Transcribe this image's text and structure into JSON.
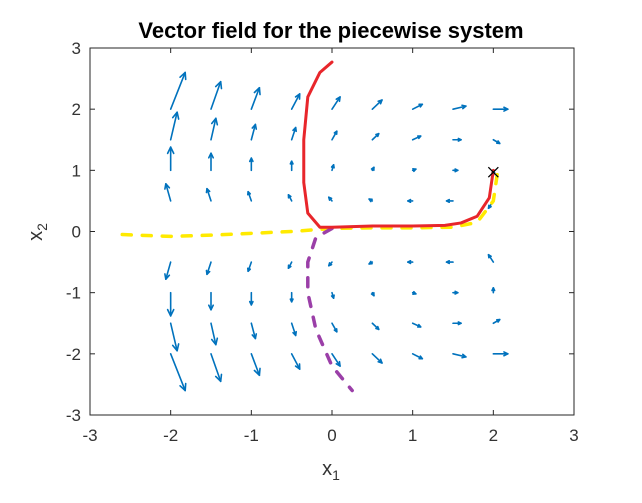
{
  "chart_data": {
    "type": "quiver",
    "title": "Vector field for the piecewise system",
    "xlabel": {
      "base": "x",
      "sub": "1"
    },
    "ylabel": {
      "base": "x",
      "sub": "2"
    },
    "xlim": [
      -3,
      3
    ],
    "ylim": [
      -3,
      3
    ],
    "xticks": [
      "-3",
      "-2",
      "-1",
      "0",
      "1",
      "2",
      "3"
    ],
    "yticks": [
      "-3",
      "-2",
      "-1",
      "0",
      "1",
      "2",
      "3"
    ],
    "grid": false,
    "quiver_color": "#0072BD",
    "quiver_grid": {
      "x": [
        -2.0,
        -1.5,
        -1.0,
        -0.5,
        0.0,
        0.5,
        1.0,
        1.5,
        2.0
      ],
      "y": [
        -2.0,
        -1.5,
        -1.0,
        -0.5,
        0.0,
        0.5,
        1.0,
        1.5,
        2.0
      ]
    },
    "quiver_vectors": [
      {
        "x": -2.0,
        "y": 2.0,
        "u": 0.18,
        "v": 0.6
      },
      {
        "x": -1.5,
        "y": 2.0,
        "u": 0.12,
        "v": 0.45
      },
      {
        "x": -1.0,
        "y": 2.0,
        "u": 0.1,
        "v": 0.35
      },
      {
        "x": -0.5,
        "y": 2.0,
        "u": 0.1,
        "v": 0.25
      },
      {
        "x": 0.0,
        "y": 2.0,
        "u": 0.1,
        "v": 0.2
      },
      {
        "x": 0.5,
        "y": 2.0,
        "u": 0.12,
        "v": 0.15
      },
      {
        "x": 1.0,
        "y": 2.0,
        "u": 0.12,
        "v": 0.08
      },
      {
        "x": 1.5,
        "y": 2.0,
        "u": 0.16,
        "v": 0.05
      },
      {
        "x": 2.0,
        "y": 2.0,
        "u": 0.18,
        "v": 0.0
      },
      {
        "x": -2.0,
        "y": 1.5,
        "u": 0.08,
        "v": 0.45
      },
      {
        "x": -1.5,
        "y": 1.5,
        "u": 0.06,
        "v": 0.35
      },
      {
        "x": -1.0,
        "y": 1.5,
        "u": 0.05,
        "v": 0.25
      },
      {
        "x": -0.5,
        "y": 1.5,
        "u": 0.05,
        "v": 0.2
      },
      {
        "x": 0.0,
        "y": 1.5,
        "u": 0.06,
        "v": 0.14
      },
      {
        "x": 0.5,
        "y": 1.5,
        "u": 0.08,
        "v": 0.1
      },
      {
        "x": 1.0,
        "y": 1.5,
        "u": 0.1,
        "v": 0.06
      },
      {
        "x": 1.5,
        "y": 1.5,
        "u": 0.1,
        "v": 0.0
      },
      {
        "x": 2.0,
        "y": 1.5,
        "u": 0.08,
        "v": -0.06
      },
      {
        "x": -2.0,
        "y": 1.0,
        "u": 0.0,
        "v": 0.38
      },
      {
        "x": -1.5,
        "y": 1.0,
        "u": 0.0,
        "v": 0.28
      },
      {
        "x": -1.0,
        "y": 1.0,
        "u": 0.0,
        "v": 0.2
      },
      {
        "x": -0.5,
        "y": 1.0,
        "u": 0.0,
        "v": 0.15
      },
      {
        "x": 0.0,
        "y": 1.0,
        "u": 0.02,
        "v": 0.09
      },
      {
        "x": 0.5,
        "y": 1.0,
        "u": 0.02,
        "v": 0.05
      },
      {
        "x": 1.0,
        "y": 1.0,
        "u": 0.04,
        "v": 0.02
      },
      {
        "x": 1.5,
        "y": 1.0,
        "u": 0.06,
        "v": 0.0
      },
      {
        "x": 2.0,
        "y": 1.0,
        "u": 0.0,
        "v": -0.08
      },
      {
        "x": -2.0,
        "y": 0.5,
        "u": -0.06,
        "v": 0.28
      },
      {
        "x": -1.5,
        "y": 0.5,
        "u": -0.05,
        "v": 0.2
      },
      {
        "x": -1.0,
        "y": 0.5,
        "u": -0.04,
        "v": 0.15
      },
      {
        "x": -0.5,
        "y": 0.5,
        "u": -0.04,
        "v": 0.1
      },
      {
        "x": 0.0,
        "y": 0.5,
        "u": -0.04,
        "v": 0.06
      },
      {
        "x": 0.5,
        "y": 0.5,
        "u": -0.04,
        "v": 0.03
      },
      {
        "x": 1.0,
        "y": 0.5,
        "u": -0.06,
        "v": 0.0
      },
      {
        "x": 1.5,
        "y": 0.5,
        "u": -0.08,
        "v": 0.0
      },
      {
        "x": 2.0,
        "y": 0.5,
        "u": -0.06,
        "v": -0.12
      },
      {
        "x": -2.0,
        "y": -0.5,
        "u": -0.06,
        "v": -0.28
      },
      {
        "x": -1.5,
        "y": -0.5,
        "u": -0.05,
        "v": -0.2
      },
      {
        "x": -1.0,
        "y": -0.5,
        "u": -0.04,
        "v": -0.15
      },
      {
        "x": -0.5,
        "y": -0.5,
        "u": -0.04,
        "v": -0.1
      },
      {
        "x": 0.0,
        "y": -0.5,
        "u": -0.04,
        "v": -0.06
      },
      {
        "x": 0.5,
        "y": -0.5,
        "u": -0.04,
        "v": -0.03
      },
      {
        "x": 1.0,
        "y": -0.5,
        "u": -0.06,
        "v": 0.0
      },
      {
        "x": 1.5,
        "y": -0.5,
        "u": -0.08,
        "v": 0.0
      },
      {
        "x": 2.0,
        "y": -0.5,
        "u": -0.06,
        "v": 0.12
      },
      {
        "x": -2.0,
        "y": -1.0,
        "u": 0.0,
        "v": -0.38
      },
      {
        "x": -1.5,
        "y": -1.0,
        "u": 0.0,
        "v": -0.28
      },
      {
        "x": -1.0,
        "y": -1.0,
        "u": 0.0,
        "v": -0.2
      },
      {
        "x": -0.5,
        "y": -1.0,
        "u": 0.0,
        "v": -0.15
      },
      {
        "x": 0.0,
        "y": -1.0,
        "u": 0.02,
        "v": -0.09
      },
      {
        "x": 0.5,
        "y": -1.0,
        "u": 0.02,
        "v": -0.05
      },
      {
        "x": 1.0,
        "y": -1.0,
        "u": 0.04,
        "v": -0.02
      },
      {
        "x": 1.5,
        "y": -1.0,
        "u": 0.06,
        "v": 0.0
      },
      {
        "x": 2.0,
        "y": -1.0,
        "u": 0.0,
        "v": 0.08
      },
      {
        "x": -2.0,
        "y": -1.5,
        "u": 0.08,
        "v": -0.45
      },
      {
        "x": -1.5,
        "y": -1.5,
        "u": 0.06,
        "v": -0.35
      },
      {
        "x": -1.0,
        "y": -1.5,
        "u": 0.05,
        "v": -0.25
      },
      {
        "x": -0.5,
        "y": -1.5,
        "u": 0.05,
        "v": -0.2
      },
      {
        "x": 0.0,
        "y": -1.5,
        "u": 0.06,
        "v": -0.14
      },
      {
        "x": 0.5,
        "y": -1.5,
        "u": 0.08,
        "v": -0.1
      },
      {
        "x": 1.0,
        "y": -1.5,
        "u": 0.1,
        "v": -0.06
      },
      {
        "x": 1.5,
        "y": -1.5,
        "u": 0.1,
        "v": 0.0
      },
      {
        "x": 2.0,
        "y": -1.5,
        "u": 0.08,
        "v": 0.06
      },
      {
        "x": -2.0,
        "y": -2.0,
        "u": 0.18,
        "v": -0.6
      },
      {
        "x": -1.5,
        "y": -2.0,
        "u": 0.12,
        "v": -0.45
      },
      {
        "x": -1.0,
        "y": -2.0,
        "u": 0.1,
        "v": -0.35
      },
      {
        "x": -0.5,
        "y": -2.0,
        "u": 0.1,
        "v": -0.25
      },
      {
        "x": 0.0,
        "y": -2.0,
        "u": 0.1,
        "v": -0.2
      },
      {
        "x": 0.5,
        "y": -2.0,
        "u": 0.12,
        "v": -0.15
      },
      {
        "x": 1.0,
        "y": -2.0,
        "u": 0.12,
        "v": -0.08
      },
      {
        "x": 1.5,
        "y": -2.0,
        "u": 0.16,
        "v": -0.05
      },
      {
        "x": 2.0,
        "y": -2.0,
        "u": 0.18,
        "v": 0.0
      }
    ],
    "series": [
      {
        "color": "#FFEA00",
        "style": "dashed",
        "points": [
          [
            -2.6,
            -0.05
          ],
          [
            -2.0,
            -0.08
          ],
          [
            -1.5,
            -0.06
          ],
          [
            -1.0,
            -0.03
          ],
          [
            -0.5,
            0.0
          ],
          [
            0.0,
            0.05
          ],
          [
            0.5,
            0.06
          ],
          [
            1.0,
            0.06
          ],
          [
            1.5,
            0.07
          ],
          [
            1.8,
            0.15
          ],
          [
            2.0,
            0.5
          ],
          [
            2.05,
            0.95
          ]
        ]
      },
      {
        "color": "#9B3FA8",
        "style": "dashed",
        "points": [
          [
            0.0,
            0.05
          ],
          [
            -0.2,
            -0.1
          ],
          [
            -0.3,
            -0.5
          ],
          [
            -0.3,
            -1.0
          ],
          [
            -0.2,
            -1.6
          ],
          [
            0.0,
            -2.2
          ],
          [
            0.25,
            -2.6
          ]
        ]
      },
      {
        "color": "#E8262B",
        "style": "solid",
        "points": [
          [
            0.0,
            2.77
          ],
          [
            -0.15,
            2.6
          ],
          [
            -0.3,
            2.2
          ],
          [
            -0.35,
            1.5
          ],
          [
            -0.35,
            0.8
          ],
          [
            -0.3,
            0.3
          ],
          [
            -0.15,
            0.07
          ],
          [
            0.0,
            0.07
          ],
          [
            0.5,
            0.09
          ],
          [
            1.0,
            0.09
          ],
          [
            1.4,
            0.1
          ],
          [
            1.6,
            0.14
          ],
          [
            1.8,
            0.25
          ],
          [
            1.95,
            0.55
          ],
          [
            2.0,
            1.0
          ]
        ]
      }
    ],
    "marker": {
      "x": 2.0,
      "y": 0.97,
      "symbol": "x",
      "color": "#000000"
    }
  }
}
